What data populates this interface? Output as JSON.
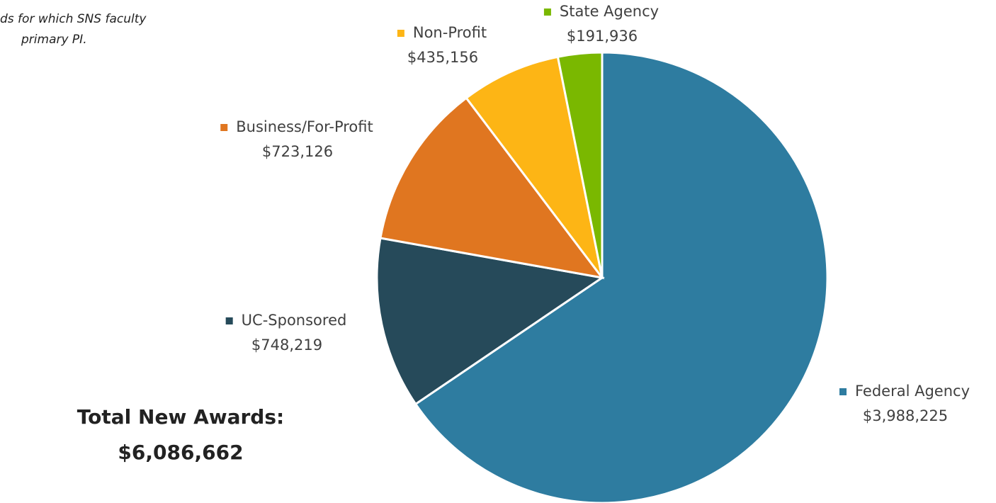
{
  "chart_data": {
    "type": "pie",
    "note": [
      "ds for which SNS faculty",
      "primary PI."
    ],
    "categories": [
      "Federal Agency",
      "UC-Sponsored",
      "Business/For-Profit",
      "Non-Profit",
      "State Agency"
    ],
    "values": [
      3988225,
      748219,
      723126,
      435156,
      191936
    ],
    "value_labels": [
      "$3,988,225",
      "$748,219",
      "$723,126",
      "$435,156",
      "$191,936"
    ],
    "colors": [
      "#2e7ca0",
      "#264a5a",
      "#e07620",
      "#fdb515",
      "#7ab800"
    ],
    "total_title": "Total New Awards:",
    "total_value": "$6,086,662"
  }
}
